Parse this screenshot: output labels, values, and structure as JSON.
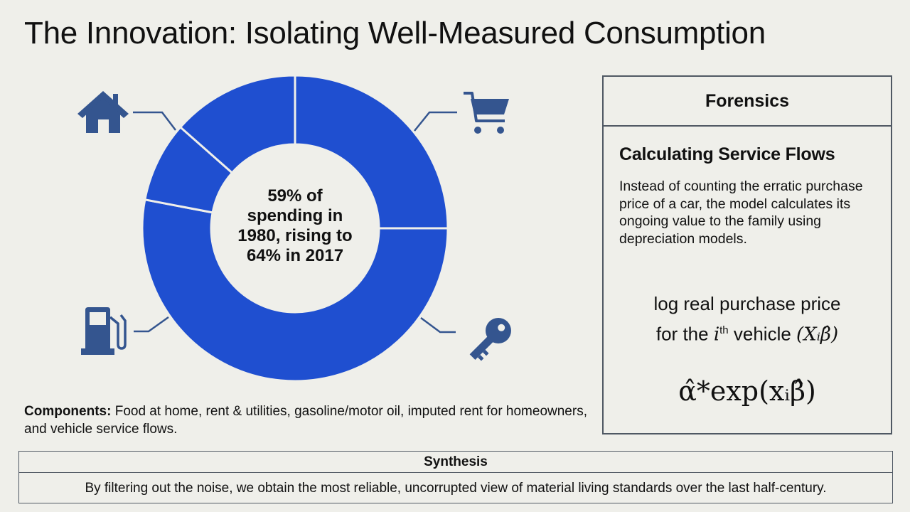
{
  "title": "The Innovation: Isolating Well-Measured Consumption",
  "donut": {
    "center_line1": "59% of",
    "center_line2": "spending in",
    "center_line3": "1980, rising to",
    "center_line4": "64% in 2017",
    "fill_color": "#1f4fd0",
    "icon_color": "#34558f",
    "segments_pct": [
      25,
      53,
      8.5,
      13.5
    ],
    "icons": [
      "house-icon",
      "shopping-cart-icon",
      "key-icon",
      "gas-pump-icon"
    ]
  },
  "components": {
    "label": "Components:",
    "text": " Food at home, rent & utilities, gasoline/motor oil, imputed rent for homeowners, and vehicle service flows."
  },
  "panel": {
    "header": "Forensics",
    "subheading": "Calculating Service Flows",
    "body": "Instead of counting the erratic purchase price of a car, the model calculates its ongoing value to the family using depreciation models.",
    "formula_line1": "log real purchase price",
    "formula_line2_pre": "for the ",
    "formula_line2_i": "i",
    "formula_line2_sup": "th",
    "formula_line2_post": " vehicle ",
    "formula_line2_math": "(Xᵢβ̂)",
    "formula2": "α̂*exp(xᵢβ̂)"
  },
  "synthesis": {
    "header": "Synthesis",
    "body": "By filtering out the noise, we obtain the most reliable, uncorrupted view of material living standards over the last half-century."
  }
}
